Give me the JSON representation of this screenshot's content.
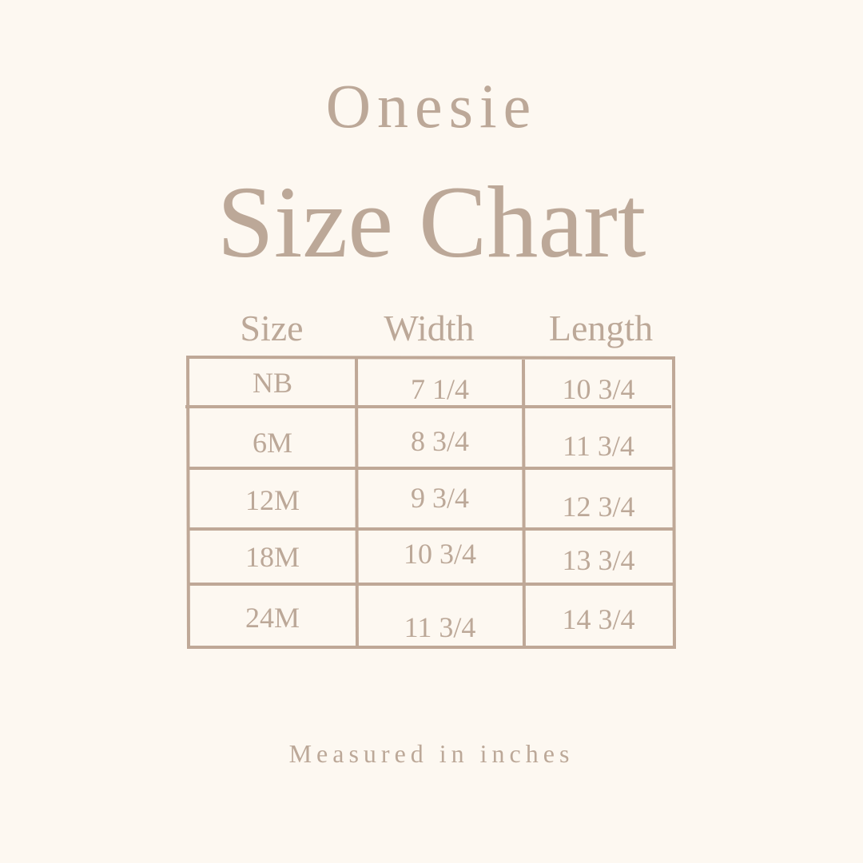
{
  "title_line1": "Onesie",
  "title_line2": "Size Chart",
  "table": {
    "headers": [
      "Size",
      "Width",
      "Length"
    ],
    "rows": [
      [
        "NB",
        "7 1/4",
        "10 3/4"
      ],
      [
        "6M",
        "8 3/4",
        "11 3/4"
      ],
      [
        "12M",
        "9 3/4",
        "12 3/4"
      ],
      [
        "18M",
        "10 3/4",
        "13 3/4"
      ],
      [
        "24M",
        "11 3/4",
        "14 3/4"
      ]
    ]
  },
  "footer": "Measured in inches",
  "colors": {
    "background": "#fdf8f1",
    "text": "#bca898",
    "lines": "#bfa897"
  }
}
